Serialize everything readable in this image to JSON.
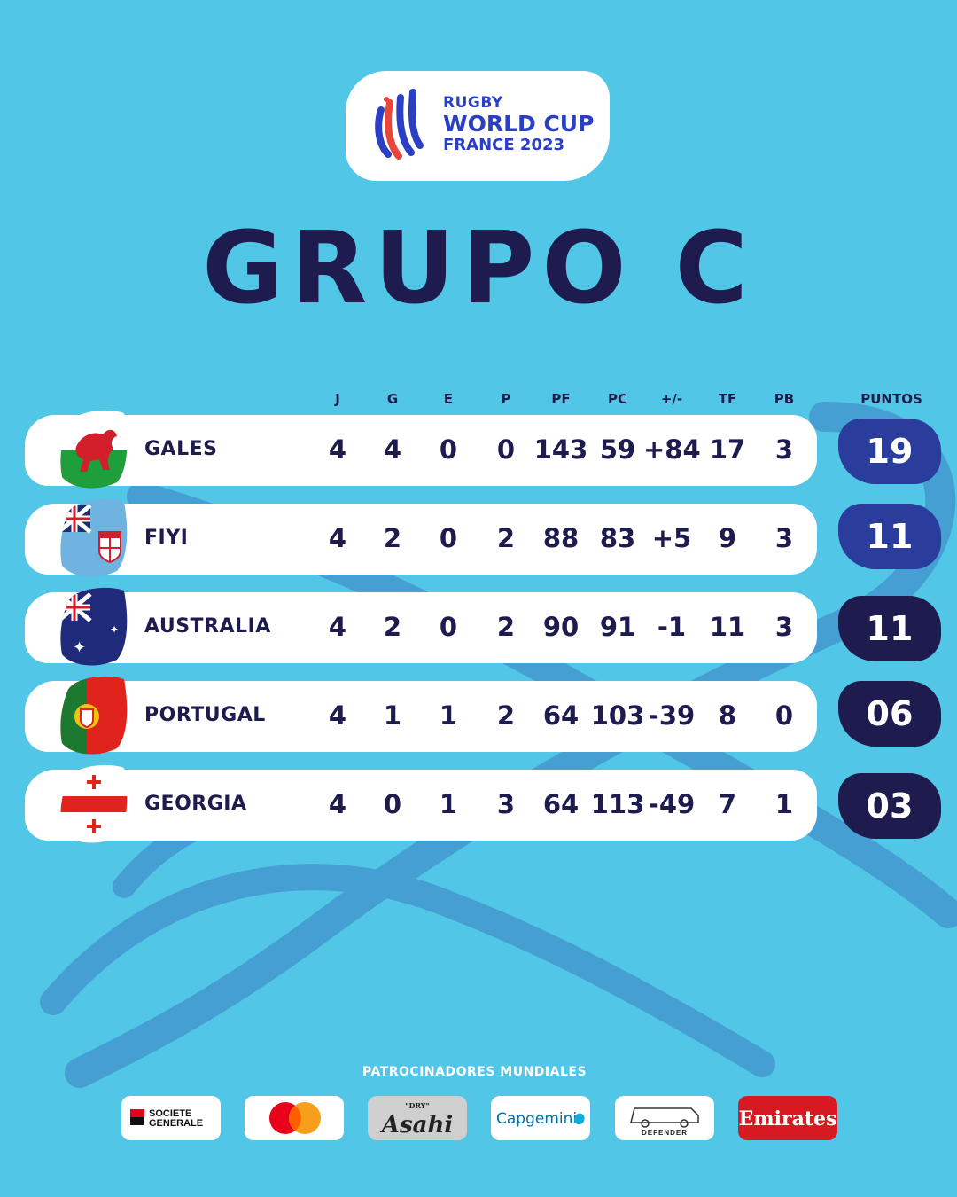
{
  "logo": {
    "line1": "RUGBY",
    "line2": "WORLD CUP",
    "line3": "FRANCE 2023"
  },
  "title": "GRUPO C",
  "columns": [
    "J",
    "G",
    "E",
    "P",
    "PF",
    "PC",
    "+/-",
    "TF",
    "PB",
    "PUNTOS"
  ],
  "rows": [
    {
      "team": "GALES",
      "flag": "wales-flag-icon",
      "J": "4",
      "G": "4",
      "E": "0",
      "P": "0",
      "PF": "143",
      "PC": "59",
      "diff": "+84",
      "TF": "17",
      "PB": "3",
      "points": "19"
    },
    {
      "team": "FIYI",
      "flag": "fiji-flag-icon",
      "J": "4",
      "G": "2",
      "E": "0",
      "P": "2",
      "PF": "88",
      "PC": "83",
      "diff": "+5",
      "TF": "9",
      "PB": "3",
      "points": "11"
    },
    {
      "team": "AUSTRALIA",
      "flag": "australia-flag-icon",
      "J": "4",
      "G": "2",
      "E": "0",
      "P": "2",
      "PF": "90",
      "PC": "91",
      "diff": "-1",
      "TF": "11",
      "PB": "3",
      "points": "11"
    },
    {
      "team": "PORTUGAL",
      "flag": "portugal-flag-icon",
      "J": "4",
      "G": "1",
      "E": "1",
      "P": "2",
      "PF": "64",
      "PC": "103",
      "diff": "-39",
      "TF": "8",
      "PB": "0",
      "points": "06"
    },
    {
      "team": "GEORGIA",
      "flag": "georgia-flag-icon",
      "J": "4",
      "G": "0",
      "E": "1",
      "P": "3",
      "PF": "64",
      "PC": "113",
      "diff": "-49",
      "TF": "7",
      "PB": "1",
      "points": "03"
    }
  ],
  "points_colors": [
    "#2b3d9c",
    "#2b3d9c",
    "#1e1b4e",
    "#1e1b4e",
    "#1e1b4e"
  ],
  "colors": {
    "background": "#52c6e6",
    "navy": "#1e1b4e",
    "blue": "#2b3d9c"
  },
  "sponsors_title": "PATROCINADORES MUNDIALES",
  "sponsors": {
    "societe_generale": [
      "SOCIETE",
      "GENERALE"
    ],
    "mastercard": "mastercard-logo-icon",
    "asahi": {
      "tag": "\"DRY\"",
      "name": "Asahi"
    },
    "capgemini": "Capgemini",
    "defender": "DEFENDER",
    "emirates": "Emirates"
  }
}
